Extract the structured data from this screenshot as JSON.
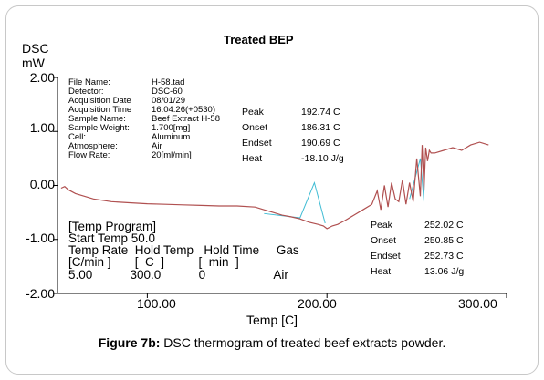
{
  "chart_data": {
    "type": "line",
    "title": "Treated BEP",
    "ylabel_line1": "DSC",
    "ylabel_line2": "mW",
    "xlabel": "Temp [C]",
    "xlim": [
      50,
      300
    ],
    "ylim": [
      -2.0,
      2.0
    ],
    "x_ticks": [
      "100.00",
      "200.00",
      "300.00"
    ],
    "y_ticks": [
      "2.00",
      "1.00",
      "0.00",
      "-1.00",
      "-2.00"
    ],
    "colors": {
      "curve": "#b05050",
      "baseline": "#3fbcd4",
      "axis": "#000000"
    },
    "series": [
      {
        "x": [
          52,
          54,
          56,
          60,
          70,
          80,
          90,
          100,
          110,
          120,
          130,
          140,
          150,
          160,
          165,
          170,
          175,
          180,
          185,
          190,
          195,
          198,
          200,
          203,
          206,
          210,
          215,
          220,
          225,
          228,
          230,
          232,
          234,
          236,
          238,
          240,
          242,
          244,
          246,
          248,
          250,
          252,
          253,
          254,
          255,
          256,
          257,
          258,
          260,
          265,
          270,
          275,
          280,
          285,
          290
        ],
        "y": [
          -0.05,
          -0.02,
          -0.08,
          -0.15,
          -0.25,
          -0.3,
          -0.32,
          -0.34,
          -0.35,
          -0.36,
          -0.37,
          -0.38,
          -0.38,
          -0.4,
          -0.45,
          -0.5,
          -0.55,
          -0.58,
          -0.62,
          -0.68,
          -0.72,
          -0.75,
          -0.8,
          -0.75,
          -0.72,
          -0.65,
          -0.55,
          -0.45,
          -0.35,
          -0.1,
          -0.45,
          0.0,
          -0.4,
          0.05,
          -0.25,
          -0.3,
          0.1,
          -0.35,
          0.05,
          -0.3,
          0.5,
          -0.2,
          0.75,
          -0.1,
          0.7,
          0.45,
          0.65,
          0.6,
          0.6,
          0.65,
          0.7,
          0.65,
          0.75,
          0.8,
          0.75
        ]
      }
    ],
    "info_block": [
      [
        "File Name:",
        "H-58.tad"
      ],
      [
        "Detector:",
        "DSC-60"
      ],
      [
        "Acquisition Date",
        "08/01/29"
      ],
      [
        "Acquisition Time",
        "16:04:26(+0530)"
      ],
      [
        "Sample Name:",
        "Beef Extract H-58"
      ],
      [
        "Sample Weight:",
        "1.700[mg]"
      ],
      [
        "Cell:",
        "Aluminum"
      ],
      [
        "Atmosphere:",
        "Air"
      ],
      [
        "Flow Rate:",
        "20[ml/min]"
      ]
    ],
    "peak1": {
      "Peak": "192.74 C",
      "Onset": "186.31 C",
      "Endset": "190.69 C",
      "Heat": "-18.10 J/g"
    },
    "peak2": {
      "Peak": "252.02 C",
      "Onset": "250.85 C",
      "Endset": "252.73 C",
      "Heat": "13.06 J/g"
    },
    "temp_program": {
      "header": "[Temp Program]",
      "start": "Start Temp  50.0",
      "col_line1": "Temp Rate  Hold Temp   Hold Time     Gas",
      "col_line2": "[C/min ]       [  C  ]          [  min  ]",
      "row": "5.00           300.0           0                    Air"
    }
  },
  "caption": {
    "label": "Figure 7b:",
    "text": " DSC thermogram of treated beef extracts powder."
  }
}
